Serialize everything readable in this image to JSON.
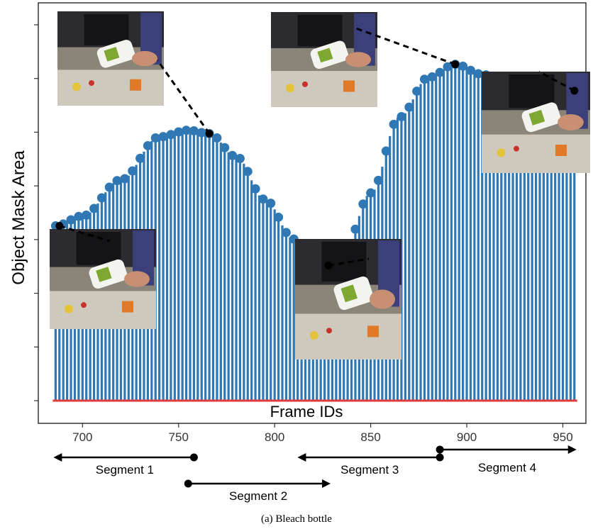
{
  "chart_data": {
    "type": "bar",
    "xlabel": "Frame IDs",
    "ylabel": "Object Mask Area",
    "xlim": [
      677,
      962
    ],
    "ylim": [
      0,
      100
    ],
    "xticks": [
      700,
      750,
      800,
      850,
      900,
      950
    ],
    "ytick_count": 8,
    "grid": false,
    "bar_color": "#2f78b4",
    "marker_color": "#2f78b4",
    "baseline_color": "#e0393e",
    "frame_start": 686,
    "frame_end": 956,
    "frame_step": 2,
    "keypoints": [
      {
        "frame": 686,
        "value": 53
      },
      {
        "frame": 700,
        "value": 56
      },
      {
        "frame": 720,
        "value": 67
      },
      {
        "frame": 740,
        "value": 80
      },
      {
        "frame": 755,
        "value": 82
      },
      {
        "frame": 766,
        "value": 81
      },
      {
        "frame": 780,
        "value": 74
      },
      {
        "frame": 795,
        "value": 61
      },
      {
        "frame": 810,
        "value": 49
      },
      {
        "frame": 820,
        "value": 43
      },
      {
        "frame": 828,
        "value": 41
      },
      {
        "frame": 836,
        "value": 45
      },
      {
        "frame": 850,
        "value": 63
      },
      {
        "frame": 865,
        "value": 86
      },
      {
        "frame": 880,
        "value": 98
      },
      {
        "frame": 894,
        "value": 102
      },
      {
        "frame": 908,
        "value": 99
      },
      {
        "frame": 925,
        "value": 93
      },
      {
        "frame": 942,
        "value": 92
      },
      {
        "frame": 956,
        "value": 94
      }
    ],
    "segments": [
      {
        "label": "Segment 1",
        "start": 686,
        "end": 758,
        "arrow": "start",
        "row": 0
      },
      {
        "label": "Segment 2",
        "start": 755,
        "end": 828,
        "arrow": "end",
        "row": 1
      },
      {
        "label": "Segment 3",
        "start": 813,
        "end": 886,
        "arrow": "start",
        "row": 0
      },
      {
        "label": "Segment 4",
        "start": 886,
        "end": 956,
        "arrow": "end",
        "row": -1
      }
    ],
    "annotated_frames": [
      {
        "frame": 688,
        "value": 53
      },
      {
        "frame": 766,
        "value": 81
      },
      {
        "frame": 828,
        "value": 41
      },
      {
        "frame": 894,
        "value": 102
      },
      {
        "frame": 956,
        "value": 94
      }
    ]
  },
  "caption": "(a) Bleach bottle",
  "icons": [
    "bleach-bottle-photo"
  ]
}
